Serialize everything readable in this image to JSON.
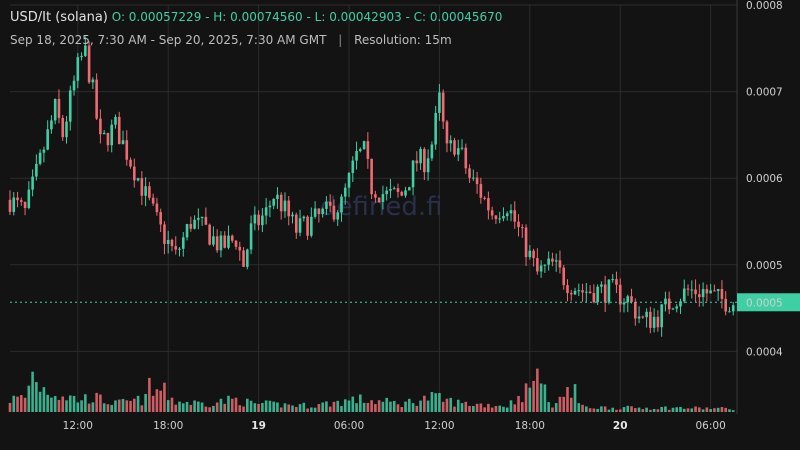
{
  "header": {
    "symbol": "USD/It (solana)",
    "ohlc": "O: 0.00057229 - H: 0.00074560 - L: 0.00042903 - C: 0.00045670",
    "range": "Sep 18, 2025, 7:30 AM - Sep 20, 2025, 7:30 AM GMT",
    "separator": "|",
    "resolution": "Resolution: 15m"
  },
  "watermark": "defined.fi",
  "colors": {
    "up": "#3fcfa4",
    "down": "#f06a72",
    "background": "#131313",
    "grid": "#2c2c2c"
  },
  "chart_data": {
    "type": "candlestick",
    "title": "USD/It (solana)",
    "resolution": "15m",
    "y_ticks": [
      "0.0004",
      "0.0005",
      "0.0006",
      "0.0007",
      "0.0008"
    ],
    "y_tick_values": [
      0.0004,
      0.0005,
      0.0006,
      0.0007,
      0.0008
    ],
    "ylim": [
      0.00033,
      0.0008
    ],
    "current_price_label": "0.0005",
    "current_price": 0.0004567,
    "x_ticks": [
      "12:00",
      "18:00",
      "19",
      "06:00",
      "12:00",
      "18:00",
      "20",
      "06:00"
    ],
    "x_tick_hours": [
      4.5,
      10.5,
      16.5,
      22.5,
      28.5,
      34.5,
      40.5,
      46.5
    ],
    "x_tick_bold": [
      false,
      false,
      true,
      false,
      false,
      false,
      true,
      false
    ],
    "xlim_hours": [
      0,
      48.25
    ],
    "anchor_prices": [
      [
        0,
        0.000575
      ],
      [
        1,
        0.00056
      ],
      [
        2,
        0.00062
      ],
      [
        3,
        0.00068
      ],
      [
        3.5,
        0.00065
      ],
      [
        4,
        0.00069
      ],
      [
        4.6,
        0.000735
      ],
      [
        5,
        0.000745
      ],
      [
        5.5,
        0.0007
      ],
      [
        6,
        0.00064
      ],
      [
        7,
        0.00066
      ],
      [
        8,
        0.00062
      ],
      [
        9,
        0.00058
      ],
      [
        10,
        0.00054
      ],
      [
        11,
        0.00051
      ],
      [
        12,
        0.00055
      ],
      [
        13,
        0.00054
      ],
      [
        14,
        0.00052
      ],
      [
        15,
        0.00053
      ],
      [
        15.5,
        0.0005
      ],
      [
        16,
        0.00054
      ],
      [
        17,
        0.00056
      ],
      [
        17.5,
        0.00058
      ],
      [
        18,
        0.00057
      ],
      [
        19,
        0.00054
      ],
      [
        20,
        0.00055
      ],
      [
        21,
        0.00056
      ],
      [
        22,
        0.00057
      ],
      [
        23,
        0.000625
      ],
      [
        23.5,
        0.00063
      ],
      [
        24,
        0.00059
      ],
      [
        25,
        0.00058
      ],
      [
        26,
        0.00058
      ],
      [
        27,
        0.00062
      ],
      [
        27.5,
        0.00062
      ],
      [
        28,
        0.00064
      ],
      [
        28.5,
        0.00069
      ],
      [
        29,
        0.00063
      ],
      [
        29.5,
        0.00064
      ],
      [
        30,
        0.000625
      ],
      [
        30.5,
        0.0006
      ],
      [
        31,
        0.00059
      ],
      [
        32,
        0.00056
      ],
      [
        33,
        0.00057
      ],
      [
        34,
        0.00053
      ],
      [
        35,
        0.00049
      ],
      [
        36,
        0.0005
      ],
      [
        37,
        0.00048
      ],
      [
        38,
        0.00047
      ],
      [
        39,
        0.00047
      ],
      [
        40,
        0.00047
      ],
      [
        41,
        0.00046
      ],
      [
        42,
        0.000435
      ],
      [
        43,
        0.00044
      ],
      [
        44,
        0.00046
      ],
      [
        45,
        0.00047
      ],
      [
        46,
        0.00047
      ],
      [
        47,
        0.00046
      ],
      [
        48,
        0.000457
      ]
    ],
    "anchor_volumes": [
      [
        0,
        0.3
      ],
      [
        1,
        0.35
      ],
      [
        1.6,
        1.0
      ],
      [
        2,
        0.6
      ],
      [
        3,
        0.45
      ],
      [
        4.5,
        0.3
      ],
      [
        5.5,
        0.35
      ],
      [
        7,
        0.2
      ],
      [
        9,
        0.3
      ],
      [
        10,
        0.55
      ],
      [
        11,
        0.25
      ],
      [
        13,
        0.2
      ],
      [
        15,
        0.3
      ],
      [
        16,
        0.2
      ],
      [
        20,
        0.15
      ],
      [
        23,
        0.3
      ],
      [
        26,
        0.2
      ],
      [
        28,
        0.35
      ],
      [
        30,
        0.2
      ],
      [
        33,
        0.15
      ],
      [
        35,
        0.7
      ],
      [
        36,
        0.2
      ],
      [
        37,
        0.45
      ],
      [
        38,
        0.12
      ],
      [
        40,
        0.1
      ],
      [
        44,
        0.1
      ],
      [
        48,
        0.08
      ]
    ],
    "volume_spikes": [
      [
        35.1,
        0.7
      ],
      [
        37.4,
        0.45
      ],
      [
        9.2,
        0.55
      ],
      [
        1.5,
        0.65
      ]
    ]
  }
}
